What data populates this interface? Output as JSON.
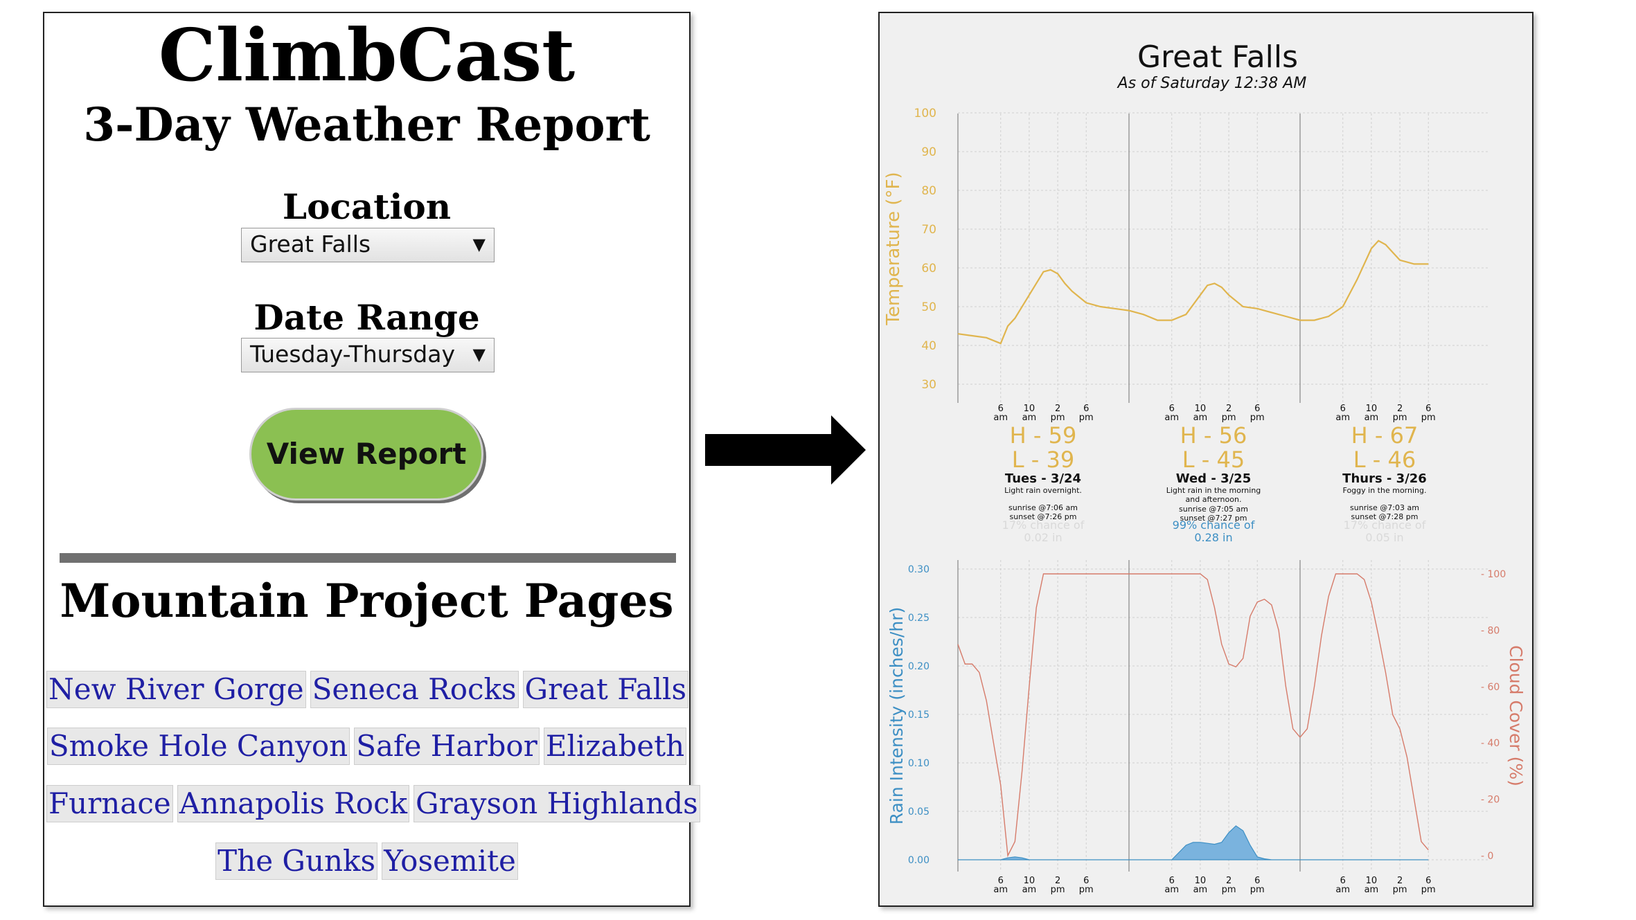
{
  "app": {
    "title": "ClimbCast",
    "subtitle": "3-Day Weather Report"
  },
  "form": {
    "location_label": "Location",
    "location_value": "Great Falls",
    "date_range_label": "Date Range",
    "date_range_value": "Tuesday-Thursday",
    "submit_label": "View Report"
  },
  "mountain_project": {
    "title": "Mountain Project Pages",
    "rows": [
      [
        "New River Gorge",
        "Seneca Rocks",
        "Great Falls"
      ],
      [
        "Smoke Hole Canyon",
        "Safe Harbor",
        "Elizabeth"
      ],
      [
        "Furnace",
        "Annapolis Rock",
        "Grayson Highlands"
      ],
      [
        "The Gunks",
        "Yosemite"
      ]
    ]
  },
  "arrow_icon": "right-arrow-icon",
  "report": {
    "title": "Great Falls",
    "as_of": "As of Saturday 12:38 AM",
    "days": [
      {
        "high": "H - 59",
        "low": "L - 39",
        "date": "Tues - 3/24",
        "summary": [
          "Light rain overnight."
        ],
        "sunrise": "sunrise @7:06 am",
        "sunset": "sunset @7:26 pm",
        "precip": [
          "17% chance of",
          "0.02 in"
        ],
        "precip_faded": true
      },
      {
        "high": "H - 56",
        "low": "L - 45",
        "date": "Wed - 3/25",
        "summary": [
          "Light rain in the morning",
          "and afternoon."
        ],
        "sunrise": "sunrise @7:05 am",
        "sunset": "sunset @7:27 pm",
        "precip": [
          "99% chance of",
          "0.28 in"
        ],
        "precip_faded": false
      },
      {
        "high": "H - 67",
        "low": "L - 46",
        "date": "Thurs - 3/26",
        "summary": [
          "Foggy in the morning."
        ],
        "sunrise": "sunrise @7:03 am",
        "sunset": "sunset @7:28 pm",
        "precip": [
          "17% chance of",
          "0.05 in"
        ],
        "precip_faded": true
      }
    ],
    "hour_ticks": [
      [
        "6",
        "am"
      ],
      [
        "10",
        "am"
      ],
      [
        "2",
        "pm"
      ],
      [
        "6",
        "pm"
      ]
    ],
    "colors": {
      "temperature": "#e0b54e",
      "rain": "#3d8fc4",
      "cloud": "#d67b6a",
      "precip_text": "#3d8fc4"
    }
  },
  "chart_data": [
    {
      "type": "line",
      "ylabel": "Temperature (°F)",
      "ylim": [
        30,
        100
      ],
      "yticks": [
        30,
        40,
        50,
        60,
        70,
        80,
        90,
        100
      ],
      "grid": true,
      "x_unit": "hours from midnight Tuesday",
      "xlim": [
        0,
        72
      ],
      "series": [
        {
          "x": [
            0,
            2,
            4,
            6,
            7,
            8,
            10,
            12,
            13,
            14,
            15,
            16,
            17,
            18,
            20,
            22,
            24,
            26,
            28,
            30,
            32,
            34,
            35,
            36,
            37,
            38,
            40,
            42,
            44,
            46,
            48,
            50,
            52,
            54,
            56,
            58,
            59,
            60,
            61,
            62,
            64,
            66
          ],
          "values": [
            43,
            42.5,
            42,
            40.5,
            45,
            47,
            53,
            59,
            59.5,
            58.5,
            56,
            54,
            52.5,
            51,
            50,
            49.5,
            49,
            48,
            46.5,
            46.5,
            48,
            53,
            55.5,
            56,
            55,
            53,
            50,
            49.5,
            48.5,
            47.5,
            46.5,
            46.5,
            47.5,
            50,
            57,
            65,
            67,
            66,
            64,
            62,
            61,
            61
          ]
        }
      ]
    },
    {
      "type": "area",
      "ylabel": "Rain Intensity (inches/hr)",
      "ylim": [
        0,
        0.3
      ],
      "yticks": [
        0.0,
        0.05,
        0.1,
        0.15,
        0.2,
        0.25,
        0.3
      ],
      "grid": true,
      "x_unit": "hours from midnight Tuesday",
      "xlim": [
        0,
        72
      ],
      "series": [
        {
          "x": [
            0,
            6,
            7,
            8,
            9,
            10,
            30,
            32,
            33,
            34,
            35,
            36,
            37,
            38,
            39,
            40,
            41,
            42,
            43,
            44,
            50,
            66
          ],
          "values": [
            0,
            0,
            0.002,
            0.003,
            0.002,
            0,
            0,
            0.015,
            0.018,
            0.018,
            0.017,
            0.016,
            0.018,
            0.028,
            0.035,
            0.03,
            0.015,
            0.003,
            0.001,
            0,
            0,
            0
          ]
        }
      ]
    },
    {
      "type": "line",
      "ylabel": "Cloud Cover (%)",
      "ylim": [
        0,
        100
      ],
      "yticks": [
        0,
        20,
        40,
        60,
        80,
        100
      ],
      "axis": "right",
      "x_unit": "hours from midnight Tuesday",
      "xlim": [
        0,
        72
      ],
      "series": [
        {
          "x": [
            0,
            1,
            2,
            3,
            4,
            5,
            6,
            7,
            8,
            9,
            10,
            11,
            12,
            13,
            14,
            16,
            18,
            20,
            22,
            24,
            26,
            28,
            30,
            32,
            34,
            35,
            36,
            37,
            38,
            39,
            40,
            41,
            42,
            43,
            44,
            45,
            46,
            47,
            48,
            49,
            50,
            51,
            52,
            53,
            54,
            55,
            56,
            57,
            58,
            59,
            60,
            61,
            62,
            63,
            64,
            65,
            66
          ],
          "values": [
            75,
            68,
            68,
            65,
            55,
            40,
            25,
            0,
            5,
            30,
            60,
            88,
            100,
            100,
            100,
            100,
            100,
            100,
            100,
            100,
            100,
            100,
            100,
            100,
            100,
            98,
            88,
            75,
            68,
            67,
            70,
            85,
            90,
            91,
            89,
            80,
            60,
            45,
            42,
            45,
            60,
            78,
            92,
            100,
            100,
            100,
            100,
            98,
            90,
            78,
            65,
            50,
            45,
            35,
            20,
            5,
            2
          ]
        }
      ]
    }
  ]
}
